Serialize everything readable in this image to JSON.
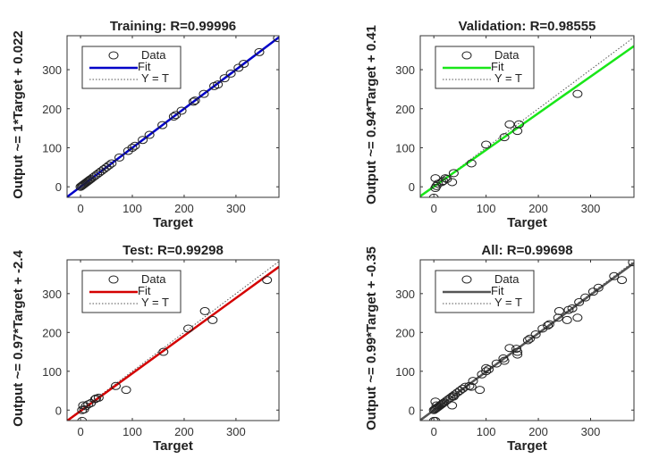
{
  "chart_data": [
    {
      "type": "scatter",
      "title": "Training: R=0.99996",
      "xlabel": "Target",
      "ylabel": "Output ~= 1*Target + 0.022",
      "xlim": [
        -26,
        383
      ],
      "ylim": [
        -27,
        387
      ],
      "xticks": [
        0,
        100,
        200,
        300
      ],
      "yticks": [
        0,
        100,
        200,
        300
      ],
      "fit": {
        "slope": 1,
        "intercept": 0.022,
        "color": "#0000c8"
      },
      "legend": {
        "placement": "top-left",
        "entries": [
          "Data",
          "Fit",
          "Y = T"
        ]
      },
      "points": [
        [
          0,
          0
        ],
        [
          2,
          2
        ],
        [
          4,
          4
        ],
        [
          6,
          6
        ],
        [
          8,
          8
        ],
        [
          10,
          10
        ],
        [
          12,
          12
        ],
        [
          14,
          14
        ],
        [
          16,
          16
        ],
        [
          18,
          18
        ],
        [
          20,
          20
        ],
        [
          24,
          24
        ],
        [
          28,
          28
        ],
        [
          32,
          32
        ],
        [
          36,
          36
        ],
        [
          40,
          40
        ],
        [
          45,
          45
        ],
        [
          50,
          50
        ],
        [
          55,
          55
        ],
        [
          60,
          60
        ],
        [
          75,
          75
        ],
        [
          92,
          92
        ],
        [
          100,
          100
        ],
        [
          105,
          105
        ],
        [
          120,
          120
        ],
        [
          133,
          133
        ],
        [
          158,
          158
        ],
        [
          180,
          180
        ],
        [
          184,
          184
        ],
        [
          195,
          195
        ],
        [
          218,
          218
        ],
        [
          221,
          221
        ],
        [
          238,
          238
        ],
        [
          258,
          258
        ],
        [
          265,
          262
        ],
        [
          278,
          278
        ],
        [
          290,
          290
        ],
        [
          305,
          305
        ],
        [
          315,
          315
        ],
        [
          345,
          345
        ],
        [
          381,
          381
        ]
      ]
    },
    {
      "type": "scatter",
      "title": "Validation: R=0.98555",
      "xlabel": "Target",
      "ylabel": "Output ~= 0.94*Target + 0.41",
      "xlim": [
        -26,
        383
      ],
      "ylim": [
        -27,
        387
      ],
      "xticks": [
        0,
        100,
        200,
        300
      ],
      "yticks": [
        0,
        100,
        200,
        300
      ],
      "fit": {
        "slope": 0.94,
        "intercept": 0.41,
        "color": "#19e619"
      },
      "legend": {
        "placement": "top-left",
        "entries": [
          "Data",
          "Fit",
          "Y = T"
        ]
      },
      "points": [
        [
          0,
          -28
        ],
        [
          3,
          22
        ],
        [
          3,
          -3
        ],
        [
          5,
          2
        ],
        [
          8,
          8
        ],
        [
          15,
          12
        ],
        [
          18,
          15
        ],
        [
          22,
          22
        ],
        [
          25,
          20
        ],
        [
          35,
          12
        ],
        [
          38,
          35
        ],
        [
          72,
          60
        ],
        [
          100,
          108
        ],
        [
          135,
          127
        ],
        [
          145,
          160
        ],
        [
          160,
          143
        ],
        [
          163,
          160
        ],
        [
          275,
          238
        ]
      ]
    },
    {
      "type": "scatter",
      "title": "Test: R=0.99298",
      "xlabel": "Target",
      "ylabel": "Output ~= 0.97*Target + -2.4",
      "xlim": [
        -26,
        383
      ],
      "ylim": [
        -27,
        387
      ],
      "xticks": [
        0,
        100,
        200,
        300
      ],
      "yticks": [
        0,
        100,
        200,
        300
      ],
      "fit": {
        "slope": 0.97,
        "intercept": -2.4,
        "color": "#d40000"
      },
      "legend": {
        "placement": "top-left",
        "entries": [
          "Data",
          "Fit",
          "Y = T"
        ]
      },
      "points": [
        [
          3,
          -28
        ],
        [
          5,
          12
        ],
        [
          3,
          0
        ],
        [
          7,
          2
        ],
        [
          10,
          10
        ],
        [
          15,
          15
        ],
        [
          20,
          18
        ],
        [
          28,
          28
        ],
        [
          30,
          30
        ],
        [
          35,
          32
        ],
        [
          68,
          62
        ],
        [
          88,
          52
        ],
        [
          160,
          150
        ],
        [
          208,
          210
        ],
        [
          240,
          255
        ],
        [
          255,
          232
        ],
        [
          360,
          335
        ]
      ]
    },
    {
      "type": "scatter",
      "title": "All: R=0.99698",
      "xlabel": "Target",
      "ylabel": "Output ~= 0.99*Target + -0.35",
      "xlim": [
        -26,
        383
      ],
      "ylim": [
        -27,
        387
      ],
      "xticks": [
        0,
        100,
        200,
        300
      ],
      "yticks": [
        0,
        100,
        200,
        300
      ],
      "fit": {
        "slope": 0.99,
        "intercept": -0.35,
        "color": "#555555"
      },
      "legend": {
        "placement": "top-left",
        "entries": [
          "Data",
          "Fit",
          "Y = T"
        ]
      },
      "points": [
        [
          0,
          0
        ],
        [
          2,
          2
        ],
        [
          4,
          4
        ],
        [
          6,
          6
        ],
        [
          8,
          8
        ],
        [
          10,
          10
        ],
        [
          12,
          12
        ],
        [
          14,
          14
        ],
        [
          16,
          16
        ],
        [
          18,
          18
        ],
        [
          20,
          20
        ],
        [
          24,
          24
        ],
        [
          28,
          28
        ],
        [
          32,
          32
        ],
        [
          36,
          36
        ],
        [
          40,
          40
        ],
        [
          45,
          45
        ],
        [
          50,
          50
        ],
        [
          55,
          55
        ],
        [
          60,
          60
        ],
        [
          75,
          75
        ],
        [
          92,
          92
        ],
        [
          100,
          100
        ],
        [
          105,
          105
        ],
        [
          120,
          120
        ],
        [
          133,
          133
        ],
        [
          158,
          158
        ],
        [
          180,
          180
        ],
        [
          184,
          184
        ],
        [
          195,
          195
        ],
        [
          218,
          218
        ],
        [
          221,
          221
        ],
        [
          238,
          238
        ],
        [
          258,
          258
        ],
        [
          265,
          262
        ],
        [
          278,
          278
        ],
        [
          290,
          290
        ],
        [
          305,
          305
        ],
        [
          315,
          315
        ],
        [
          345,
          345
        ],
        [
          381,
          381
        ],
        [
          0,
          -28
        ],
        [
          3,
          22
        ],
        [
          35,
          12
        ],
        [
          38,
          35
        ],
        [
          72,
          60
        ],
        [
          100,
          108
        ],
        [
          135,
          127
        ],
        [
          145,
          160
        ],
        [
          160,
          143
        ],
        [
          275,
          238
        ],
        [
          3,
          -28
        ],
        [
          5,
          12
        ],
        [
          68,
          62
        ],
        [
          88,
          52
        ],
        [
          160,
          150
        ],
        [
          208,
          210
        ],
        [
          240,
          255
        ],
        [
          255,
          232
        ],
        [
          360,
          335
        ]
      ]
    }
  ]
}
